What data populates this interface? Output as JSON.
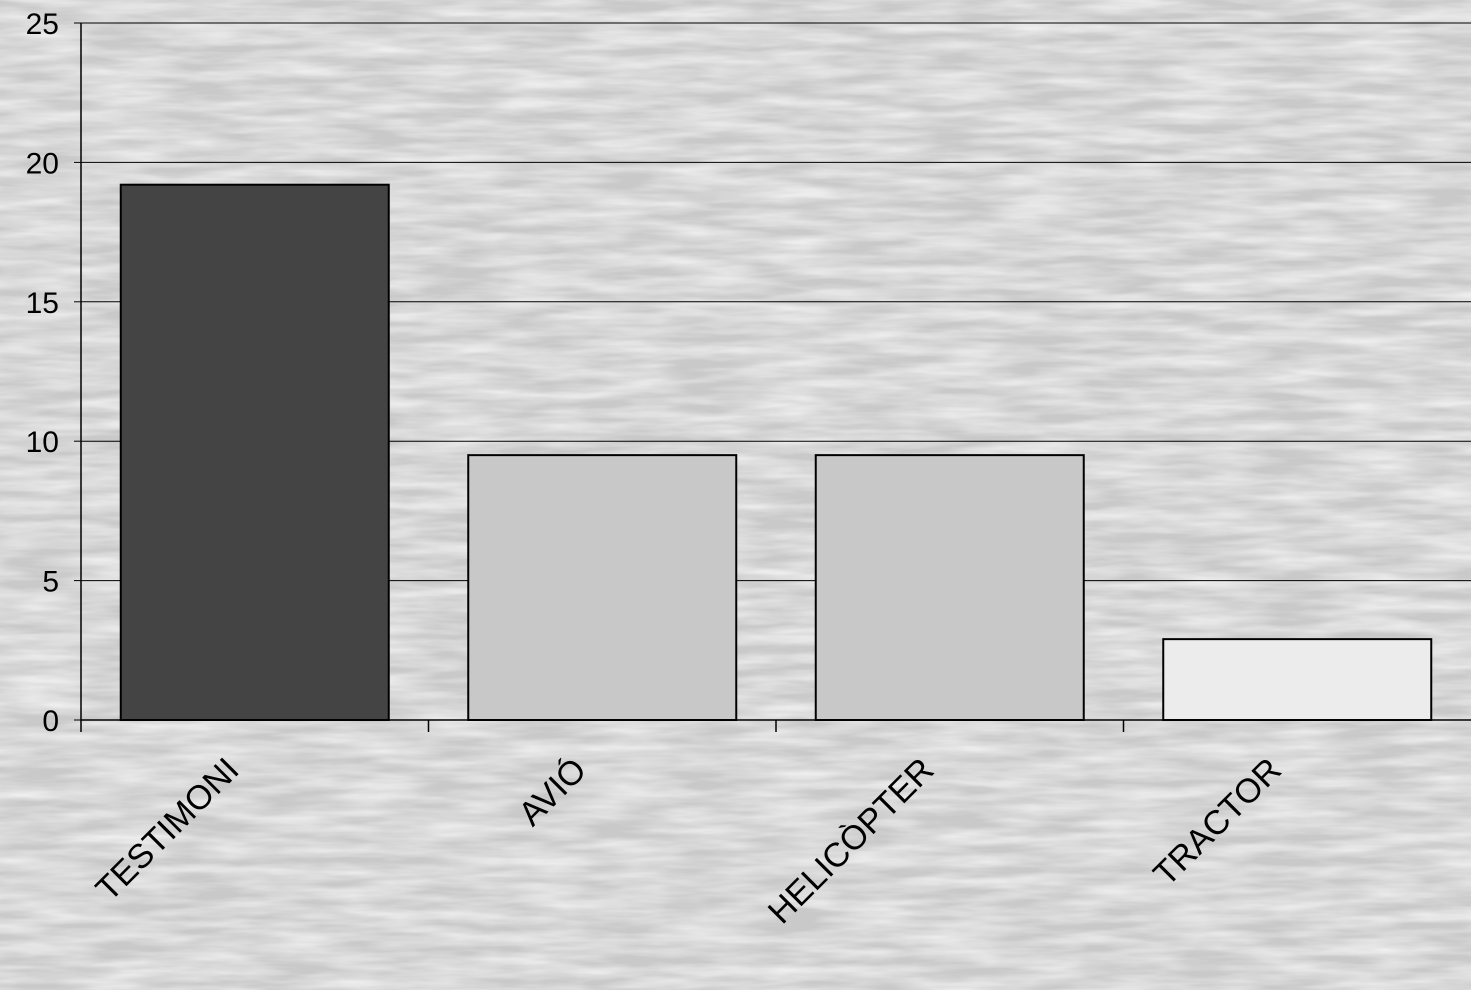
{
  "chart_data": {
    "type": "bar",
    "title": "",
    "xlabel": "",
    "ylabel": "",
    "categories": [
      "TESTIMONI",
      "AVIÓ",
      "HELICÒPTER",
      "TRACTOR"
    ],
    "values": [
      19.2,
      9.5,
      9.5,
      2.9
    ],
    "bar_colors": [
      "#444444",
      "#c8c8c8",
      "#c8c8c8",
      "#ececec"
    ],
    "ylim": [
      0,
      25
    ],
    "yticks": [
      "0",
      "5",
      "10",
      "15",
      "20",
      "25"
    ],
    "grid": true,
    "legend": "none"
  },
  "colors": {
    "background": "#c9c9c9",
    "grid": "#000000",
    "bar_stroke": "#000000"
  }
}
